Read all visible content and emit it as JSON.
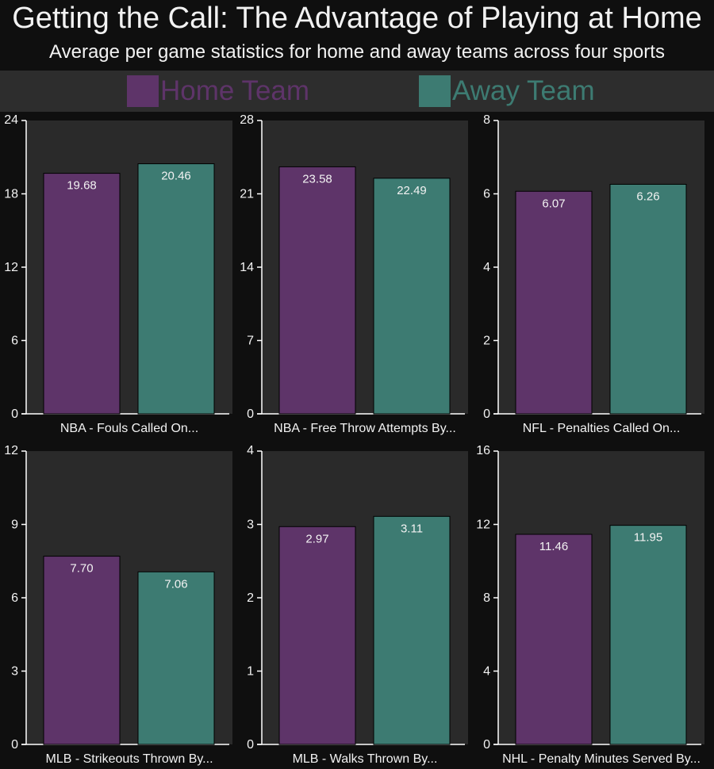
{
  "title": "Getting the Call: The Advantage of Playing at Home",
  "subtitle": "Average per game statistics for home and away teams across four sports",
  "legend": [
    {
      "label": "Home Team",
      "color": "#5e3469"
    },
    {
      "label": "Away Team",
      "color": "#3d7b72"
    }
  ],
  "colors": {
    "background": "#0f0f0f",
    "panel": "#2a2a2a",
    "legend_bg": "#2d2d2d",
    "axis": "#ffffff",
    "text": "#f2f2f2",
    "home": "#5e3469",
    "away": "#3d7b72"
  },
  "chart_data": [
    {
      "type": "bar",
      "categories": [
        "NBA - Fouls Called On..."
      ],
      "series": [
        {
          "name": "Home Team",
          "values": [
            19.68
          ]
        },
        {
          "name": "Away Team",
          "values": [
            20.46
          ]
        }
      ],
      "data_labels": [
        "19.68",
        "20.46"
      ],
      "ylim": [
        0,
        24
      ],
      "yticks": [
        0,
        6,
        12,
        18,
        24
      ]
    },
    {
      "type": "bar",
      "categories": [
        "NBA - Free Throw Attempts By..."
      ],
      "series": [
        {
          "name": "Home Team",
          "values": [
            23.58
          ]
        },
        {
          "name": "Away Team",
          "values": [
            22.49
          ]
        }
      ],
      "data_labels": [
        "23.58",
        "22.49"
      ],
      "ylim": [
        0,
        28
      ],
      "yticks": [
        0,
        7,
        14,
        21,
        28
      ]
    },
    {
      "type": "bar",
      "categories": [
        "NFL - Penalties Called On..."
      ],
      "series": [
        {
          "name": "Home Team",
          "values": [
            6.07
          ]
        },
        {
          "name": "Away Team",
          "values": [
            6.26
          ]
        }
      ],
      "data_labels": [
        "6.07",
        "6.26"
      ],
      "ylim": [
        0,
        8
      ],
      "yticks": [
        0,
        2,
        4,
        6,
        8
      ]
    },
    {
      "type": "bar",
      "categories": [
        "MLB - Strikeouts Thrown By..."
      ],
      "series": [
        {
          "name": "Home Team",
          "values": [
            7.7
          ]
        },
        {
          "name": "Away Team",
          "values": [
            7.06
          ]
        }
      ],
      "data_labels": [
        "7.70",
        "7.06"
      ],
      "ylim": [
        0,
        12
      ],
      "yticks": [
        0,
        3,
        6,
        9,
        12
      ]
    },
    {
      "type": "bar",
      "categories": [
        "MLB - Walks Thrown By..."
      ],
      "series": [
        {
          "name": "Home Team",
          "values": [
            2.97
          ]
        },
        {
          "name": "Away Team",
          "values": [
            3.11
          ]
        }
      ],
      "data_labels": [
        "2.97",
        "3.11"
      ],
      "ylim": [
        0,
        4
      ],
      "yticks": [
        0,
        1,
        2,
        3,
        4
      ]
    },
    {
      "type": "bar",
      "categories": [
        "NHL - Penalty Minutes Served By..."
      ],
      "series": [
        {
          "name": "Home Team",
          "values": [
            11.46
          ]
        },
        {
          "name": "Away Team",
          "values": [
            11.95
          ]
        }
      ],
      "data_labels": [
        "11.46",
        "11.95"
      ],
      "ylim": [
        0,
        16
      ],
      "yticks": [
        0,
        4,
        8,
        12,
        16
      ]
    }
  ]
}
